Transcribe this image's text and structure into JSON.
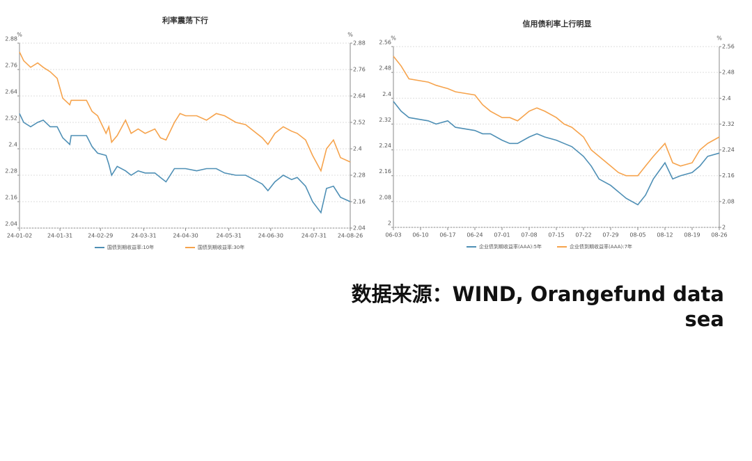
{
  "chart_data": [
    {
      "type": "line",
      "title": "利率震荡下行",
      "ylabel": "%",
      "y2label": "%",
      "x": [
        "24-01-02",
        "24-01-05",
        "24-01-10",
        "24-01-15",
        "24-01-19",
        "24-01-24",
        "24-01-29",
        "24-02-02",
        "24-02-07",
        "24-02-08",
        "24-02-19",
        "24-02-23",
        "24-02-27",
        "24-03-04",
        "24-03-06",
        "24-03-08",
        "24-03-12",
        "24-03-18",
        "24-03-22",
        "24-03-27",
        "24-04-01",
        "24-04-08",
        "24-04-12",
        "24-04-16",
        "24-04-22",
        "24-04-26",
        "24-04-30",
        "24-05-08",
        "24-05-15",
        "24-05-22",
        "24-05-28",
        "24-06-05",
        "24-06-12",
        "24-06-18",
        "24-06-24",
        "24-06-28",
        "24-07-03",
        "24-07-09",
        "24-07-15",
        "24-07-19",
        "24-07-25",
        "24-07-30",
        "24-08-05",
        "24-08-09",
        "24-08-14",
        "24-08-19",
        "24-08-26"
      ],
      "series": [
        {
          "name": "国债到期收益率:10年",
          "color": "#4e8fb5",
          "values": [
            2.56,
            2.52,
            2.5,
            2.52,
            2.53,
            2.5,
            2.5,
            2.45,
            2.42,
            2.46,
            2.46,
            2.41,
            2.38,
            2.37,
            2.33,
            2.28,
            2.32,
            2.3,
            2.28,
            2.3,
            2.29,
            2.29,
            2.27,
            2.25,
            2.31,
            2.31,
            2.31,
            2.3,
            2.31,
            2.31,
            2.29,
            2.28,
            2.28,
            2.26,
            2.24,
            2.21,
            2.25,
            2.28,
            2.26,
            2.27,
            2.23,
            2.16,
            2.11,
            2.22,
            2.23,
            2.18,
            2.16
          ]
        },
        {
          "name": "国债到期收益率:30年",
          "color": "#f6a34c",
          "values": [
            2.84,
            2.8,
            2.77,
            2.79,
            2.77,
            2.75,
            2.72,
            2.63,
            2.6,
            2.62,
            2.62,
            2.57,
            2.55,
            2.47,
            2.5,
            2.43,
            2.46,
            2.53,
            2.47,
            2.49,
            2.47,
            2.49,
            2.45,
            2.44,
            2.52,
            2.56,
            2.55,
            2.55,
            2.53,
            2.56,
            2.55,
            2.52,
            2.51,
            2.48,
            2.45,
            2.42,
            2.47,
            2.5,
            2.48,
            2.47,
            2.44,
            2.37,
            2.3,
            2.4,
            2.44,
            2.36,
            2.34
          ]
        }
      ],
      "xlim": [
        "24-01-02",
        "24-08-26"
      ],
      "xticks": [
        "24-01-02",
        "24-01-31",
        "24-02-29",
        "24-03-31",
        "24-04-30",
        "24-05-31",
        "24-06-30",
        "24-07-31",
        "24-08-26"
      ],
      "ylim": [
        2.04,
        2.88
      ],
      "yticks": [
        2.04,
        2.16,
        2.28,
        2.4,
        2.52,
        2.64,
        2.76,
        2.88
      ],
      "y2lim": [
        2.04,
        2.88
      ],
      "y2ticks": [
        2.04,
        2.16,
        2.28,
        2.4,
        2.52,
        2.64,
        2.76,
        2.88
      ],
      "grid": true,
      "legend": "bottom"
    },
    {
      "type": "line",
      "title": "信用债利率上行明显",
      "ylabel": "%",
      "y2label": "%",
      "x": [
        "06-03",
        "06-05",
        "06-07",
        "06-12",
        "06-14",
        "06-17",
        "06-19",
        "06-24",
        "06-26",
        "06-28",
        "07-01",
        "07-03",
        "07-05",
        "07-08",
        "07-10",
        "07-12",
        "07-15",
        "07-17",
        "07-19",
        "07-22",
        "07-24",
        "07-26",
        "07-29",
        "07-31",
        "08-02",
        "08-05",
        "08-07",
        "08-09",
        "08-12",
        "08-14",
        "08-16",
        "08-19",
        "08-21",
        "08-23",
        "08-26"
      ],
      "series": [
        {
          "name": "企业债到期收益率(AAA):5年",
          "color": "#4e8fb5",
          "values": [
            2.39,
            2.36,
            2.34,
            2.33,
            2.32,
            2.33,
            2.31,
            2.3,
            2.29,
            2.29,
            2.27,
            2.26,
            2.26,
            2.28,
            2.29,
            2.28,
            2.27,
            2.26,
            2.25,
            2.22,
            2.19,
            2.15,
            2.13,
            2.11,
            2.09,
            2.07,
            2.1,
            2.15,
            2.2,
            2.15,
            2.16,
            2.17,
            2.19,
            2.22,
            2.23
          ]
        },
        {
          "name": "企业债到期收益率(AAA):7年",
          "color": "#f6a34c",
          "values": [
            2.53,
            2.5,
            2.46,
            2.45,
            2.44,
            2.43,
            2.42,
            2.41,
            2.38,
            2.36,
            2.34,
            2.34,
            2.33,
            2.36,
            2.37,
            2.36,
            2.34,
            2.32,
            2.31,
            2.28,
            2.24,
            2.22,
            2.19,
            2.17,
            2.16,
            2.16,
            2.19,
            2.22,
            2.26,
            2.2,
            2.19,
            2.2,
            2.24,
            2.26,
            2.28
          ]
        }
      ],
      "xlim": [
        "06-03",
        "08-26"
      ],
      "xticks": [
        "06-03",
        "06-10",
        "06-17",
        "06-24",
        "07-01",
        "07-08",
        "07-15",
        "07-22",
        "07-29",
        "08-05",
        "08-12",
        "08-19",
        "08-26"
      ],
      "ylim": [
        2,
        2.56
      ],
      "yticks": [
        2,
        2.08,
        2.16,
        2.24,
        2.32,
        2.4,
        2.48,
        2.56
      ],
      "y2lim": [
        2,
        2.56
      ],
      "y2ticks": [
        2,
        2.08,
        2.16,
        2.24,
        2.32,
        2.4,
        2.48,
        2.56
      ],
      "grid": true,
      "legend": "bottom"
    }
  ],
  "source": "数据来源：WIND, Orangefund data sea"
}
